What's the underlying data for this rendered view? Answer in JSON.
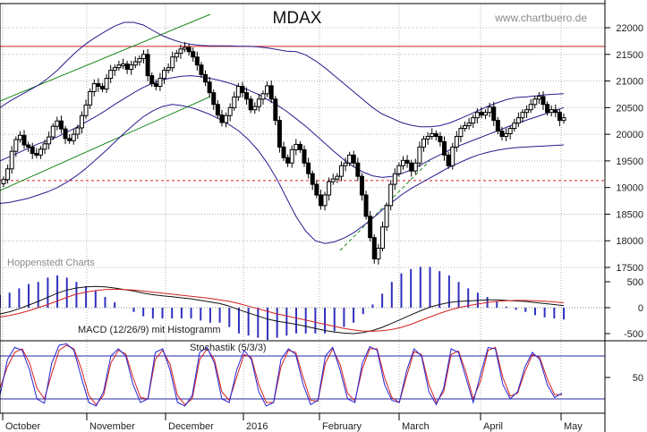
{
  "chart_data": [
    {
      "type": "candlestick",
      "title": "MDAX",
      "watermark": "www.chartbuero.de",
      "source_note": "Hoppenstedt Charts",
      "ylim": [
        17000,
        22400
      ],
      "y_ticks": [
        17500,
        18000,
        18500,
        19000,
        19500,
        20000,
        20500,
        21000,
        21500,
        22000
      ],
      "x_labels": [
        "October",
        "November",
        "December",
        "2016",
        "February",
        "March",
        "April",
        "May"
      ],
      "resistance_line": 21650,
      "support_line_dashed": 19130,
      "colors": {
        "bollinger": "#2a1a8c",
        "resistance": "#d42020",
        "trend_channel": "#1e8a1e",
        "candles": "#000000",
        "grid": "#b5b5b5"
      },
      "close": [
        19150,
        19350,
        19680,
        19900,
        19980,
        19800,
        19760,
        19640,
        19610,
        19720,
        19820,
        19950,
        20150,
        20250,
        20100,
        19920,
        19880,
        20000,
        20120,
        20350,
        20550,
        20800,
        20950,
        20900,
        20850,
        21050,
        21200,
        21250,
        21300,
        21320,
        21220,
        21300,
        21360,
        21420,
        21500,
        21100,
        20950,
        20900,
        21050,
        21200,
        21250,
        21450,
        21520,
        21600,
        21630,
        21550,
        21450,
        21300,
        21120,
        20980,
        20780,
        20560,
        20360,
        20220,
        20350,
        20500,
        20700,
        20900,
        20780,
        20660,
        20460,
        20520,
        20660,
        20760,
        20910,
        20660,
        20260,
        19760,
        19560,
        19460,
        19710,
        19810,
        19710,
        19460,
        19260,
        19060,
        18860,
        18660,
        18860,
        19110,
        19160,
        19210,
        19410,
        19460,
        19610,
        19460,
        19210,
        18860,
        18460,
        18060,
        17660,
        17860,
        18260,
        18660,
        19060,
        19260,
        19410,
        19510,
        19460,
        19310,
        19460,
        19760,
        19910,
        19960,
        20010,
        19960,
        19860,
        19610,
        19410,
        19760,
        19960,
        20110,
        20160,
        20210,
        20310,
        20410,
        20360,
        20410,
        20510,
        20260,
        20060,
        19960,
        20010,
        20110,
        20210,
        20310,
        20410,
        20460,
        20560,
        20660,
        20710,
        20560,
        20410,
        20460,
        20410,
        20260,
        20310
      ],
      "bollinger_upper": [
        20500,
        20620,
        20720,
        20820,
        20920,
        21050,
        21200,
        21380,
        21550,
        21700,
        21820,
        21930,
        22030,
        22100,
        22100,
        22050,
        21950,
        21850,
        21780,
        21720,
        21690,
        21670,
        21660,
        21660,
        21660,
        21650,
        21650,
        21640,
        21620,
        21590,
        21560,
        21550,
        21490,
        21380,
        21250,
        21100,
        20950,
        20800,
        20650,
        20500,
        20380,
        20300,
        20220,
        20170,
        20140,
        20140,
        20160,
        20210,
        20280,
        20360,
        20440,
        20520,
        20590,
        20650,
        20690,
        20700,
        20720,
        20740,
        20750,
        20760
      ],
      "bollinger_middle": [
        19500,
        19580,
        19660,
        19740,
        19820,
        19880,
        19950,
        20040,
        20130,
        20230,
        20330,
        20440,
        20560,
        20670,
        20780,
        20880,
        20960,
        21020,
        21060,
        21090,
        21100,
        21080,
        21050,
        21010,
        20960,
        20900,
        20830,
        20750,
        20650,
        20550,
        20430,
        20290,
        20150,
        19990,
        19830,
        19670,
        19520,
        19390,
        19290,
        19220,
        19190,
        19210,
        19260,
        19330,
        19420,
        19520,
        19610,
        19700,
        19780,
        19850,
        19920,
        19990,
        20060,
        20130,
        20200,
        20260,
        20320,
        20380,
        20440,
        20500
      ],
      "bollinger_lower": [
        18700,
        18720,
        18760,
        18800,
        18860,
        18920,
        19000,
        19100,
        19220,
        19360,
        19520,
        19680,
        19850,
        20020,
        20180,
        20330,
        20440,
        20520,
        20560,
        20540,
        20500,
        20440,
        20370,
        20280,
        20180,
        20060,
        19900,
        19700,
        19450,
        19150,
        18800,
        18450,
        18180,
        18000,
        17950,
        17980,
        18050,
        18150,
        18280,
        18420,
        18580,
        18720,
        18860,
        18980,
        19080,
        19180,
        19280,
        19380,
        19460,
        19540,
        19610,
        19660,
        19700,
        19730,
        19750,
        19760,
        19770,
        19780,
        19790,
        19800
      ],
      "macd": {
        "label": "MACD (12/26/9) mit Histogramm",
        "ylim": [
          -700,
          600
        ],
        "y_ticks": [
          500,
          0,
          -500
        ],
        "macd": [
          -120,
          -80,
          -20,
          50,
          120,
          200,
          280,
          340,
          380,
          400,
          410,
          400,
          380,
          350,
          320,
          280,
          250,
          230,
          210,
          190,
          170,
          140,
          110,
          80,
          30,
          -40,
          -100,
          -160,
          -220,
          -260,
          -290,
          -320,
          -360,
          -400,
          -440,
          -470,
          -490,
          -500,
          -480,
          -440,
          -380,
          -300,
          -220,
          -140,
          -60,
          10,
          60,
          100,
          120,
          130,
          140,
          150,
          150,
          140,
          130,
          120,
          100,
          80,
          60,
          40
        ],
        "signal": [
          -180,
          -150,
          -110,
          -60,
          0,
          60,
          130,
          200,
          260,
          300,
          330,
          350,
          355,
          350,
          340,
          320,
          300,
          280,
          260,
          240,
          220,
          200,
          180,
          150,
          120,
          80,
          30,
          -20,
          -70,
          -120,
          -160,
          -200,
          -240,
          -280,
          -320,
          -360,
          -400,
          -430,
          -450,
          -455,
          -445,
          -420,
          -380,
          -320,
          -250,
          -180,
          -110,
          -50,
          0,
          40,
          70,
          100,
          120,
          135,
          140,
          140,
          135,
          125,
          110,
          95
        ]
      },
      "stochastic": {
        "label": "Stochastik (5/3/3)",
        "ylim": [
          0,
          100
        ],
        "y_ticks": [
          50
        ],
        "levels": [
          80,
          20
        ],
        "k": [
          25,
          75,
          92,
          88,
          60,
          20,
          14,
          70,
          95,
          97,
          88,
          50,
          15,
          10,
          30,
          80,
          90,
          80,
          40,
          15,
          20,
          85,
          90,
          60,
          15,
          10,
          25,
          85,
          92,
          70,
          20,
          15,
          60,
          88,
          75,
          30,
          10,
          15,
          75,
          90,
          82,
          40,
          12,
          18,
          80,
          92,
          60,
          20,
          15,
          70,
          93,
          88,
          40,
          18,
          15,
          60,
          90,
          80,
          30,
          12,
          35,
          90,
          85,
          50,
          15,
          55,
          92,
          90,
          40,
          20,
          30,
          65,
          85,
          75,
          40,
          22,
          28
        ],
        "d": [
          35,
          65,
          85,
          90,
          70,
          35,
          20,
          55,
          88,
          95,
          90,
          62,
          25,
          12,
          25,
          70,
          88,
          83,
          50,
          22,
          20,
          75,
          88,
          68,
          25,
          12,
          20,
          75,
          90,
          75,
          30,
          18,
          50,
          82,
          78,
          40,
          15,
          15,
          65,
          88,
          85,
          50,
          18,
          17,
          70,
          90,
          68,
          28,
          17,
          62,
          90,
          90,
          50,
          22,
          15,
          52,
          86,
          82,
          40,
          15,
          30,
          82,
          87,
          58,
          20,
          45,
          88,
          92,
          50,
          24,
          28,
          58,
          82,
          78,
          48,
          26,
          26
        ],
        "colors": {
          "k": "#2424d4",
          "d": "#d42020"
        }
      }
    }
  ]
}
